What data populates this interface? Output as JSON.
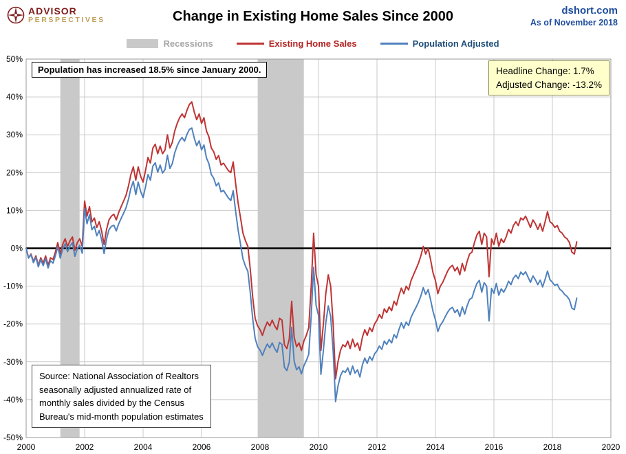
{
  "header": {
    "logo_top": "ADVISOR",
    "logo_bottom": "PERSPECTIVES",
    "title": "Change in Existing Home Sales Since 2000",
    "site": "dshort.com",
    "as_of": "As of November 2018"
  },
  "legend": [
    {
      "label": "Recessions",
      "color": "#c9c9c9"
    },
    {
      "label": "Existing Home Sales",
      "color": "#bf3434"
    },
    {
      "label": "Population Adjusted",
      "color": "#4f81bd"
    }
  ],
  "annotations": {
    "population_note": "Population has increased 18.5% since January 2000.",
    "headline_change": "Headline Change: 1.7%",
    "adjusted_change": "Adjusted Change: -13.2%",
    "source_lines": [
      "Source: National Association of Realtors",
      "seasonally adjusted annualized rate of",
      "monthly  sales divided by the Census",
      "Bureau's mid-month  population estimates"
    ]
  },
  "chart_data": {
    "type": "line",
    "title": "Change in Existing Home Sales Since 2000",
    "x_range": [
      2000,
      2020
    ],
    "y_range": [
      -50,
      50
    ],
    "x_ticks": [
      2000,
      2002,
      2004,
      2006,
      2008,
      2010,
      2012,
      2014,
      2016,
      2018,
      2020
    ],
    "y_ticks": [
      50,
      40,
      30,
      20,
      10,
      0,
      -10,
      -20,
      -30,
      -40,
      -50
    ],
    "grid": true,
    "legend_position": "top",
    "recession_color": "#c9c9c9",
    "recessions": [
      [
        2001.17,
        2001.83
      ],
      [
        2007.92,
        2009.5
      ]
    ],
    "series": [
      {
        "id": "existing-home-sales",
        "name": "Existing Home Sales",
        "color": "#bf3434",
        "start_year": 2000,
        "frequency": "monthly",
        "values": [
          0,
          -2.5,
          -1.5,
          -3.5,
          -2,
          -4.5,
          -2.5,
          -4,
          -2,
          -4.5,
          -2.5,
          -3,
          -1,
          1.5,
          -1.5,
          1,
          2.5,
          0.5,
          2,
          3,
          -0.5,
          1.5,
          2.5,
          0.5,
          12.5,
          8.5,
          11,
          7,
          8,
          5.5,
          7,
          4.5,
          1,
          5,
          7.5,
          8.5,
          9,
          7.5,
          9.5,
          11,
          12.5,
          14,
          16.5,
          19.5,
          21.5,
          18,
          21.5,
          19,
          17.5,
          20.5,
          24,
          22.5,
          26.5,
          27.5,
          25,
          27,
          25,
          26,
          30,
          26.5,
          28,
          31,
          33,
          34.5,
          35.5,
          34.5,
          36.5,
          38,
          38.7,
          36,
          34,
          35.5,
          33,
          34.5,
          31,
          29.5,
          26.5,
          25.5,
          23.5,
          24.5,
          22,
          22.5,
          21.5,
          20.5,
          20,
          22.8,
          17,
          12,
          8,
          4,
          2,
          0.5,
          -5.5,
          -13,
          -18.5,
          -20.5,
          -21.5,
          -23,
          -21,
          -19.5,
          -20.5,
          -19,
          -20.5,
          -21.5,
          -18.5,
          -19,
          -25.5,
          -26.5,
          -24,
          -14,
          -23.5,
          -26,
          -25,
          -27,
          -24.5,
          -23,
          -21,
          -10,
          4,
          -7,
          -10,
          -27,
          -20,
          -12,
          -7,
          -10,
          -20,
          -34.5,
          -30,
          -27,
          -25.5,
          -26,
          -24.5,
          -26.5,
          -24,
          -26,
          -25,
          -27,
          -23.5,
          -21.5,
          -23,
          -21,
          -22,
          -20,
          -19,
          -17.5,
          -18.5,
          -16,
          -17,
          -15.5,
          -16.5,
          -14,
          -15,
          -12.5,
          -10.5,
          -12,
          -10,
          -11,
          -8.5,
          -7,
          -5.5,
          -4,
          -2,
          0.5,
          -1.5,
          0,
          -3,
          -6.5,
          -8.5,
          -12,
          -10,
          -9,
          -7.5,
          -6,
          -5,
          -4.5,
          -6,
          -5,
          -7,
          -4,
          -6,
          -3.5,
          -1.5,
          -1,
          1.5,
          3.5,
          4.5,
          1,
          4,
          3,
          -7.5,
          2.5,
          1,
          4,
          0.5,
          2.5,
          1.5,
          3,
          5,
          4,
          6,
          7,
          6,
          8,
          7.5,
          8.5,
          7,
          5.5,
          7.5,
          6.5,
          5,
          6.5,
          4.5,
          7,
          9.7,
          7,
          6.5,
          5.5,
          6,
          4.5,
          4,
          3,
          2.5,
          1.5,
          -1,
          -1.5,
          1.7
        ]
      },
      {
        "id": "population-adjusted",
        "name": "Population Adjusted",
        "color": "#4f81bd",
        "start_year": 2000,
        "frequency": "monthly",
        "values": [
          0,
          -2.6,
          -1.7,
          -3.8,
          -2.4,
          -4.9,
          -3,
          -4.6,
          -2.7,
          -5.2,
          -3.3,
          -3.9,
          -2,
          0.4,
          -2.6,
          -0.2,
          1.2,
          -0.9,
          0.6,
          1.5,
          -2.1,
          -0.1,
          0.8,
          -1.3,
          10.5,
          6.5,
          8.9,
          4.9,
          5.8,
          3.3,
          4.7,
          2.2,
          -1.4,
          2.5,
          4.9,
          5.8,
          6.1,
          4.6,
          6.5,
          7.9,
          9.3,
          10.7,
          13,
          15.9,
          17.7,
          14.2,
          17.5,
          15,
          13.4,
          16.2,
          19.5,
          18,
          21.7,
          22.6,
          20.1,
          22,
          19.9,
          20.8,
          24.6,
          21.1,
          22.4,
          25.2,
          27.1,
          28.4,
          29.3,
          28.3,
          30.1,
          31.4,
          31.8,
          29.1,
          27.1,
          28.4,
          26,
          27.3,
          23.9,
          22.4,
          19.5,
          18.5,
          16.5,
          17.3,
          14.9,
          15.3,
          14.3,
          13.3,
          12.6,
          15.2,
          9.7,
          4.9,
          1,
          -2.8,
          -4.7,
          -6.1,
          -11.7,
          -18.7,
          -23.8,
          -26,
          -26.9,
          -28.3,
          -26.6,
          -25.3,
          -26.3,
          -25,
          -26.5,
          -27.5,
          -24.9,
          -25.4,
          -31.4,
          -32.3,
          -30.1,
          -20.9,
          -29.8,
          -32.1,
          -31.3,
          -33.2,
          -31,
          -29.7,
          -28,
          -17.9,
          -5,
          -15.1,
          -17.7,
          -33.3,
          -27,
          -19.7,
          -15.2,
          -18,
          -27.2,
          -40.5,
          -36.4,
          -33.7,
          -32.4,
          -32.8,
          -31.6,
          -33.4,
          -31.1,
          -33,
          -32.1,
          -34,
          -30.8,
          -29,
          -30.4,
          -28.6,
          -29.6,
          -27.9,
          -27.1,
          -25.8,
          -26.7,
          -24.5,
          -25.4,
          -24.1,
          -25,
          -22.8,
          -23.7,
          -21.5,
          -19.7,
          -21.1,
          -19.5,
          -20.4,
          -18.2,
          -16.9,
          -15.6,
          -14.3,
          -12.6,
          -10.4,
          -12.2,
          -10.9,
          -13.6,
          -16.7,
          -18.9,
          -22,
          -20.3,
          -19.4,
          -18.1,
          -16.9,
          -16,
          -15.6,
          -17,
          -16.2,
          -18,
          -15.5,
          -17.4,
          -15.2,
          -13.5,
          -13.1,
          -11,
          -9.3,
          -8.5,
          -11.6,
          -9.1,
          -10,
          -19.2,
          -10.6,
          -11.9,
          -9.3,
          -12.4,
          -10.7,
          -11.6,
          -10.4,
          -8.7,
          -9.6,
          -7.9,
          -7.1,
          -8,
          -6.3,
          -7,
          -6.2,
          -7.6,
          -9,
          -7.3,
          -8.3,
          -9.6,
          -8.4,
          -10.2,
          -8.2,
          -6,
          -8.3,
          -9,
          -9.8,
          -9.5,
          -10.8,
          -11.3,
          -12.2,
          -12.7,
          -13.6,
          -15.8,
          -16.2,
          -13.2
        ]
      }
    ]
  }
}
